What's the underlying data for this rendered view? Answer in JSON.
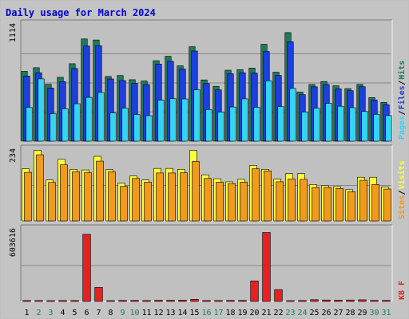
{
  "title": "Daily usage for March 2024",
  "colors": {
    "hits": "#1f7a5a",
    "files": "#1f3fdc",
    "pages": "#33d6f2",
    "visits": "#ffff40",
    "sites": "#f29a1a",
    "kbytes": "#e82020",
    "weekend": "#1f7a5a",
    "weekday": "#000000",
    "title": "#0000cc",
    "panel_bg": "#c0c0c0",
    "grid": "#888888"
  },
  "chart_data": {
    "type": "bar",
    "x": [
      "1",
      "2",
      "3",
      "4",
      "5",
      "6",
      "7",
      "8",
      "9",
      "10",
      "11",
      "12",
      "13",
      "14",
      "15",
      "16",
      "17",
      "18",
      "19",
      "20",
      "21",
      "22",
      "23",
      "24",
      "25",
      "26",
      "27",
      "28",
      "29",
      "30",
      "31"
    ],
    "weekend_days": [
      "2",
      "3",
      "9",
      "10",
      "16",
      "17",
      "23",
      "24",
      "30",
      "31"
    ],
    "panels": [
      {
        "name": "top",
        "axis_max_label": "1114",
        "ylim": [
          0,
          1114
        ],
        "right_legend": [
          "Pages",
          "Files",
          "Hits"
        ],
        "series": [
          {
            "name": "Hits",
            "values": [
              668,
              703,
              544,
              611,
              741,
              978,
              968,
              619,
              628,
              588,
              576,
              770,
              812,
              721,
              904,
              586,
              525,
              679,
              684,
              699,
              927,
              660,
              1039,
              470,
              542,
              571,
              530,
              503,
              543,
              417,
              371
            ]
          },
          {
            "name": "Files",
            "values": [
              623,
              654,
              508,
              570,
              695,
              910,
              913,
              595,
              580,
              552,
              542,
              738,
              764,
              690,
              862,
              551,
              491,
              645,
              654,
              651,
              858,
              629,
              951,
              445,
              520,
              542,
              500,
              483,
              521,
              394,
              348
            ]
          },
          {
            "name": "Pages",
            "values": [
              324,
              596,
              263,
              310,
              358,
              419,
              466,
              270,
              316,
              255,
              244,
              392,
              407,
              404,
              491,
              302,
              278,
              327,
              405,
              324,
              578,
              331,
              505,
              279,
              315,
              362,
              334,
              320,
              284,
              256,
              245
            ]
          }
        ]
      },
      {
        "name": "middle",
        "axis_max_label": "234",
        "ylim": [
          0,
          234
        ],
        "right_legend": [
          "Sites",
          "Visits"
        ],
        "series": [
          {
            "name": "Visits",
            "values": [
              172,
              233,
              135,
              203,
              170,
              168,
              213,
              169,
              124,
              148,
              135,
              173,
              173,
              170,
              233,
              152,
              139,
              129,
              137,
              183,
              170,
              138,
              156,
              156,
              120,
              116,
              113,
              103,
              144,
              144,
              112
            ]
          },
          {
            "name": "Sites",
            "values": [
              160,
              218,
              127,
              185,
              162,
              159,
              197,
              162,
              114,
              140,
              128,
              158,
              158,
              159,
              196,
              140,
              128,
              123,
              128,
              172,
              165,
              129,
              138,
              137,
              110,
              110,
              107,
              96,
              134,
              120,
              105
            ]
          }
        ]
      },
      {
        "name": "bottom",
        "axis_max_label": "603616",
        "ylim": [
          0,
          603616
        ],
        "right_legend": [
          "KB F"
        ],
        "series": [
          {
            "name": "KB F",
            "values": [
              8000,
              8000,
              7000,
              8000,
              8000,
              565000,
              118000,
              7000,
              9000,
              9000,
              8000,
              10000,
              10000,
              11000,
              18000,
              8000,
              8000,
              9000,
              9000,
              173000,
              580000,
              100000,
              7000,
              8000,
              15000,
              12000,
              11000,
              12000,
              14000,
              9000,
              9000
            ]
          }
        ]
      }
    ]
  }
}
